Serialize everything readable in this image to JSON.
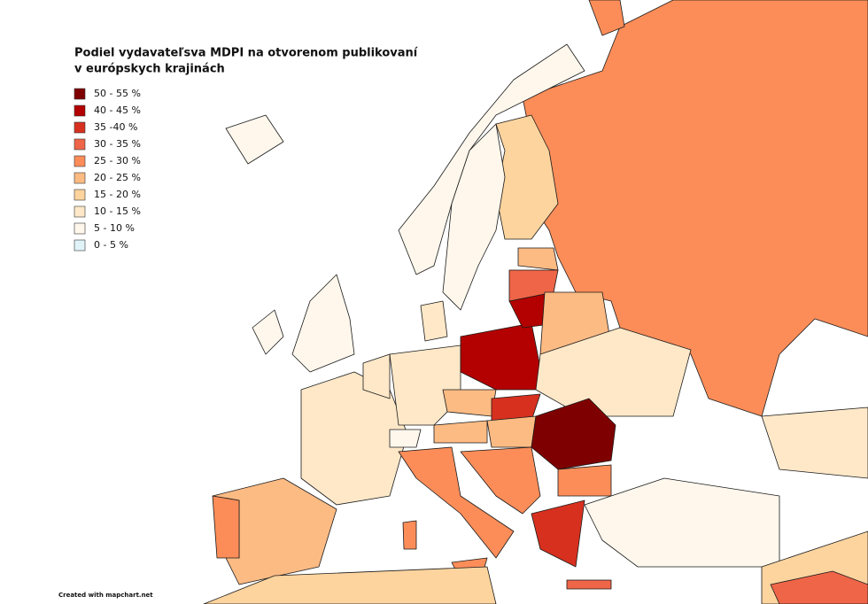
{
  "title": [
    "Podiel vydavateľsva MDPI na otvorenom publikovaní",
    "v európskych krajinách"
  ],
  "legend": [
    {
      "label": "50 - 55 %",
      "color": "#7f0000"
    },
    {
      "label": "40 - 45 %",
      "color": "#b30000"
    },
    {
      "label": "35 -40 %",
      "color": "#d7301f"
    },
    {
      "label": "30 - 35 %",
      "color": "#ef6548"
    },
    {
      "label": "25 - 30 %",
      "color": "#fc8d59"
    },
    {
      "label": "20 - 25 %",
      "color": "#fdbb84"
    },
    {
      "label": "15 - 20 %",
      "color": "#fdd49e"
    },
    {
      "label": "10 - 15 %",
      "color": "#fee8c8"
    },
    {
      "label": "5 - 10 %",
      "color": "#fff7ec"
    },
    {
      "label": "0 - 5 %",
      "color": "#e0f3f8"
    }
  ],
  "credit": "Created with mapchart.net"
}
